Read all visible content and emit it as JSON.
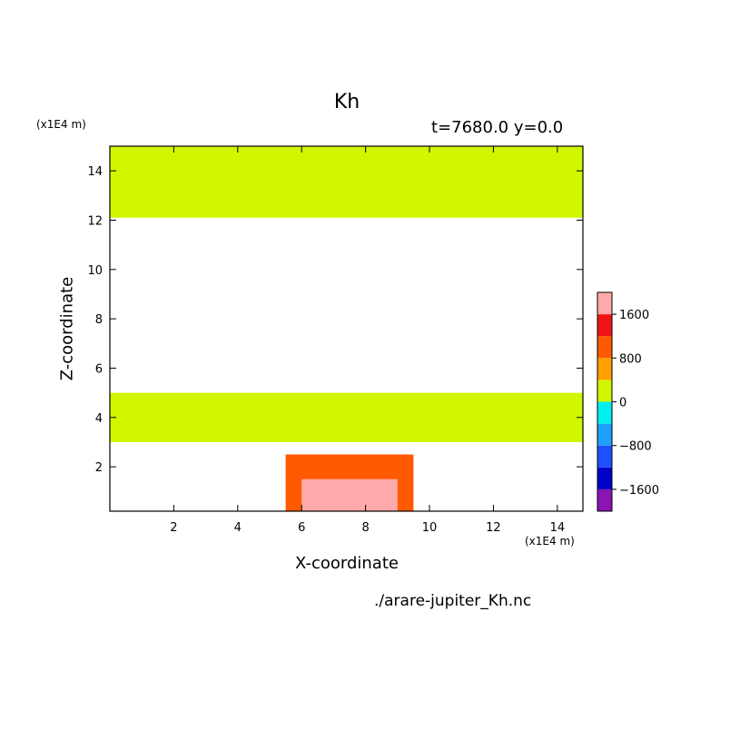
{
  "chart_data": {
    "type": "heatmap",
    "title": "Kh",
    "subtitle": "t=7680.0 y=0.0",
    "xlabel": "X-coordinate",
    "ylabel": "Z-coordinate",
    "x_unit": "(x1E4 m)",
    "y_unit": "(x1E4 m)",
    "xlim": [
      0,
      14.8
    ],
    "ylim": [
      0.2,
      15
    ],
    "x_ticks": [
      2,
      4,
      6,
      8,
      10,
      12,
      14
    ],
    "y_ticks": [
      2,
      4,
      6,
      8,
      10,
      12,
      14
    ],
    "colorbar": {
      "levels": [
        -2000,
        -1600,
        -1200,
        -800,
        -400,
        0,
        400,
        800,
        1200,
        1600,
        2000
      ],
      "colors": [
        "#8a14b4",
        "#0000c8",
        "#1e50ff",
        "#1ea0ff",
        "#00f0f0",
        "#d2f500",
        "#ffa000",
        "#ff5a00",
        "#f01414",
        "#ffaaaa"
      ],
      "tick_labels": [
        {
          "value": 1600,
          "label": "1600"
        },
        {
          "value": 800,
          "label": "800"
        },
        {
          "value": 0,
          "label": "0"
        },
        {
          "value": -800,
          "label": "−800"
        },
        {
          "value": -1600,
          "label": "−1600"
        }
      ]
    },
    "background_color": "#ffffff",
    "regions": [
      {
        "value": 200,
        "x_range": [
          0,
          14.8
        ],
        "z_range": [
          12.1,
          15
        ]
      },
      {
        "value": 200,
        "x_range": [
          0,
          14.8
        ],
        "z_range": [
          3,
          5
        ]
      },
      {
        "value": 1000,
        "x_range": [
          5.5,
          9.5
        ],
        "z_range": [
          0.2,
          2.5
        ]
      },
      {
        "value": 1800,
        "x_range": [
          6.0,
          9.0
        ],
        "z_range": [
          0.2,
          1.5
        ]
      }
    ],
    "source": "./arare-jupiter_Kh.nc"
  }
}
